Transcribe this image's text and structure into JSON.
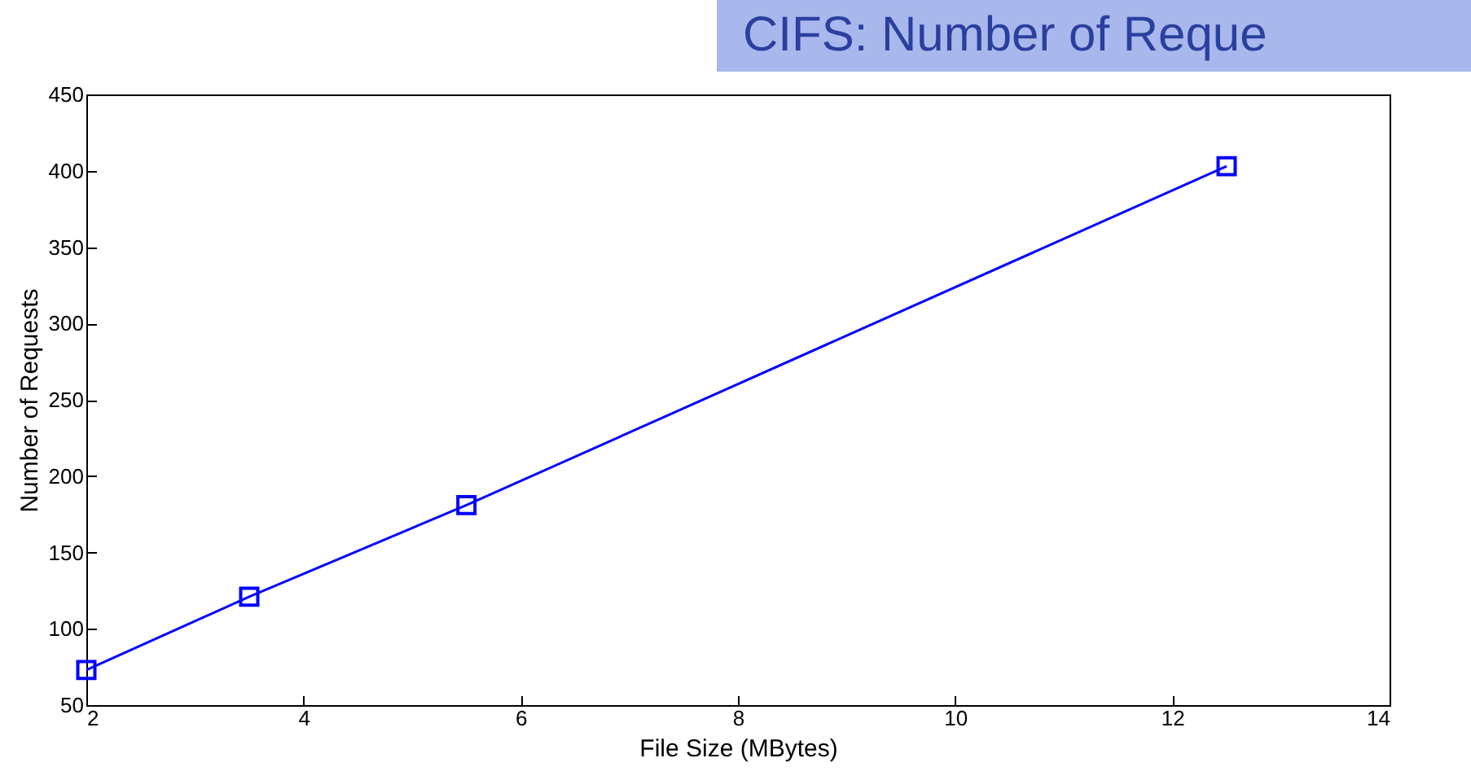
{
  "chart_data": {
    "type": "line",
    "title": "CIFS: Number of Reque",
    "xlabel": "File Size (MBytes)",
    "ylabel": "Number of Requests",
    "x": [
      2,
      3.5,
      5.5,
      12.5
    ],
    "series": [
      {
        "color": "#0000ff",
        "values": [
          73,
          121,
          181,
          403
        ]
      }
    ],
    "xlim": [
      2,
      14
    ],
    "xticks": [
      2,
      4,
      6,
      8,
      10,
      12,
      14
    ],
    "ylim": [
      50,
      450
    ],
    "yticks": [
      50,
      100,
      150,
      200,
      250,
      300,
      350,
      400,
      450
    ],
    "grid": false,
    "marker": "square",
    "line_style": "solid"
  }
}
